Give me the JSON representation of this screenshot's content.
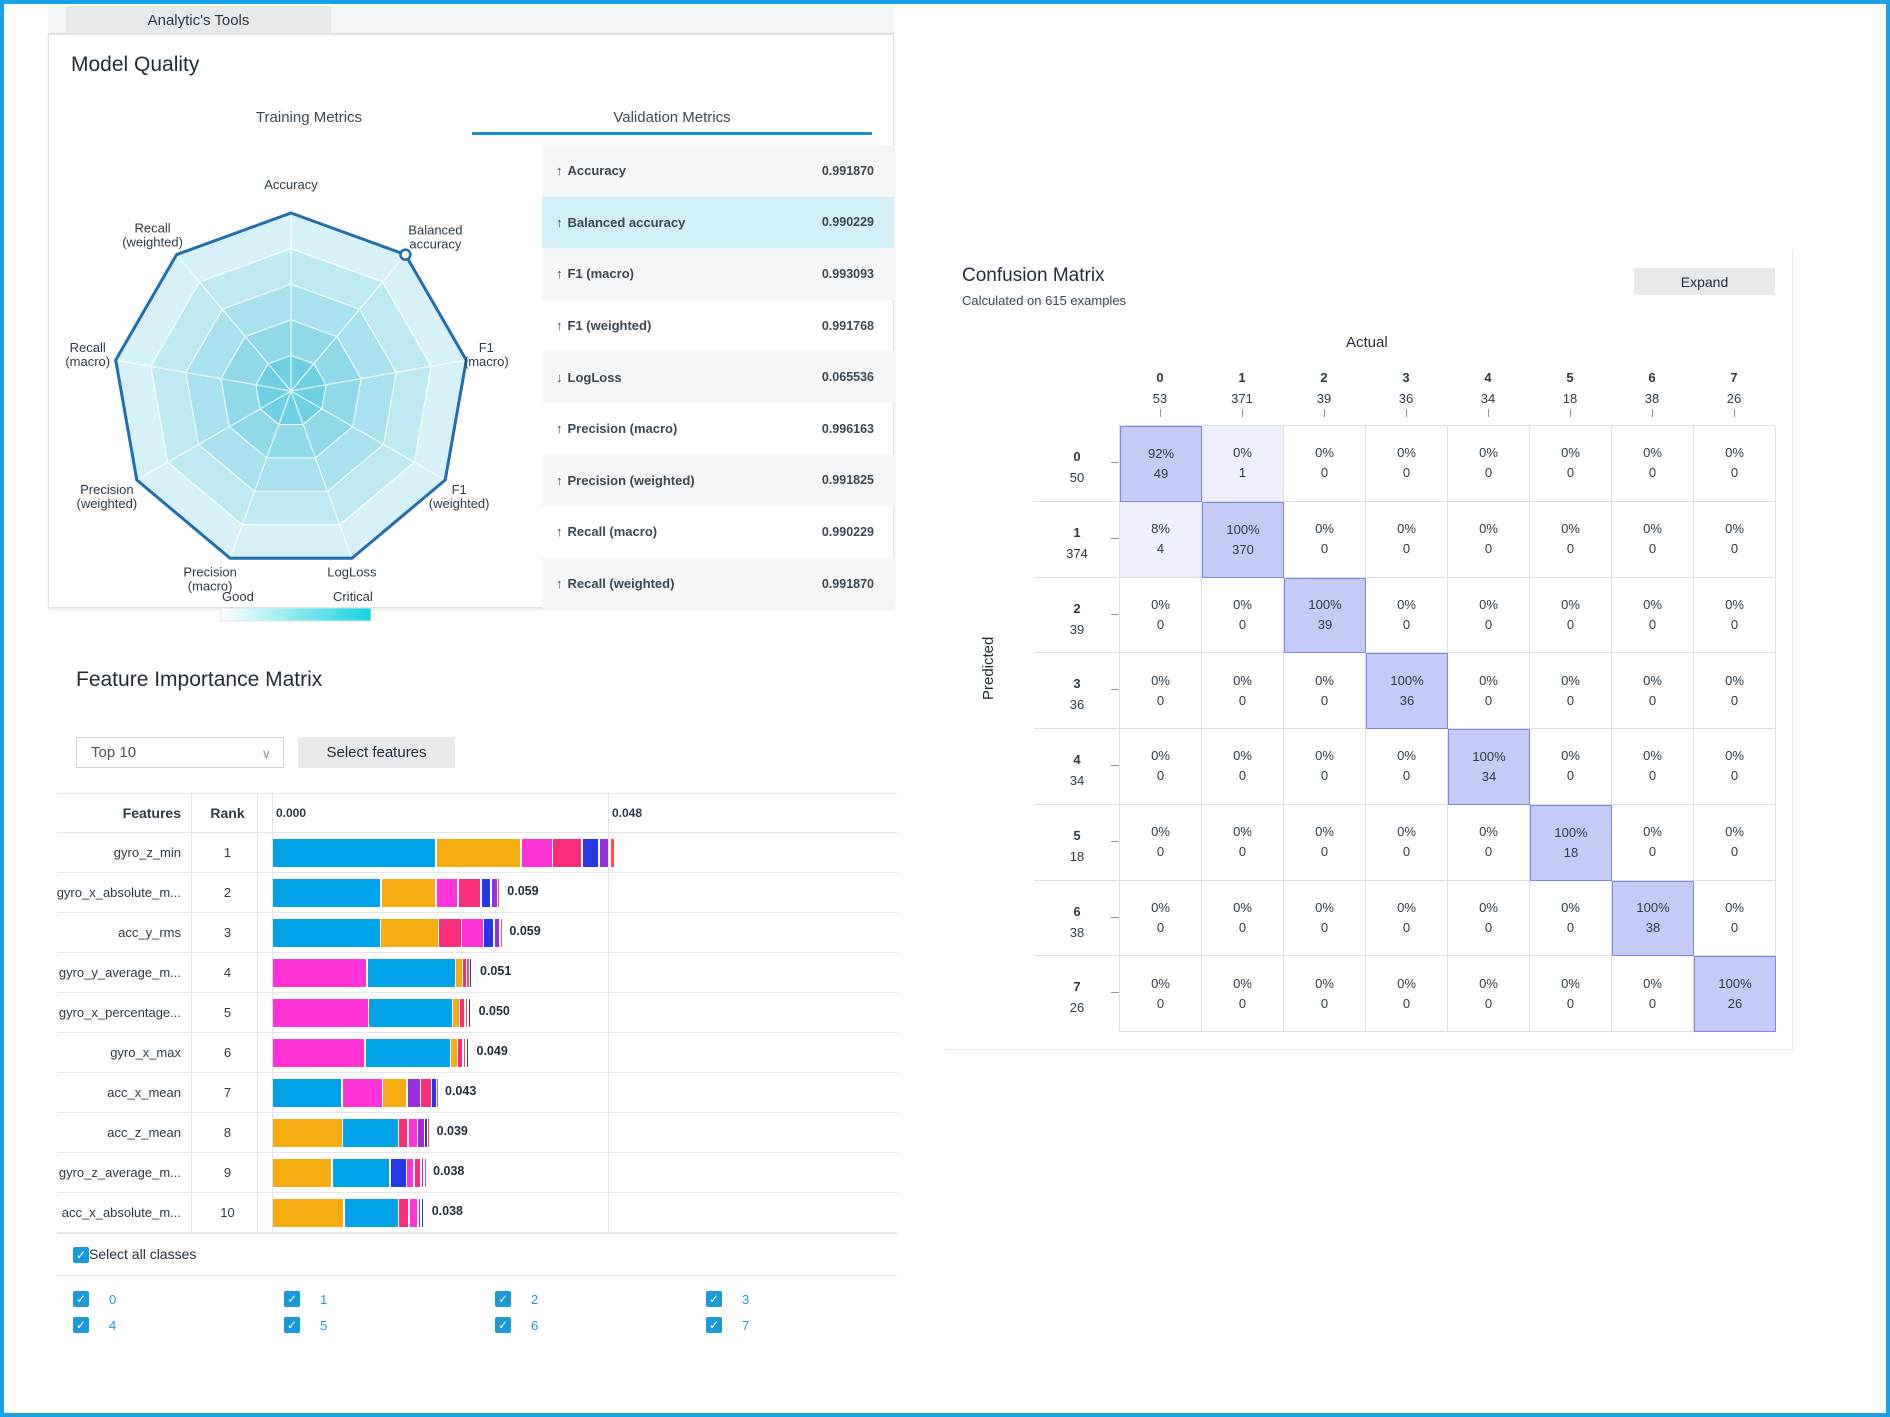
{
  "tools": {
    "tab_label": "Analytic's Tools"
  },
  "model_quality": {
    "title": "Model Quality",
    "tabs": [
      "Training Metrics",
      "Validation Metrics"
    ],
    "active_tab": "Validation Metrics",
    "radar_axes": [
      [
        "Accuracy"
      ],
      [
        "Balanced",
        "accuracy"
      ],
      [
        "F1",
        "(macro)"
      ],
      [
        "F1",
        "(weighted)"
      ],
      [
        "LogLoss"
      ],
      [
        "Precision",
        "(macro)"
      ],
      [
        "Precision",
        "(weighted)"
      ],
      [
        "Recall",
        "(macro)"
      ],
      [
        "Recall",
        "(weighted)"
      ]
    ],
    "radar_score": [
      1,
      1,
      1,
      1,
      1,
      1,
      1,
      1,
      1
    ],
    "highlighted_axis": "Balanced accuracy",
    "legend": {
      "good": "Good",
      "critical": "Critical"
    },
    "metrics": [
      {
        "direction": "up",
        "name": "Accuracy",
        "value": "0.991870"
      },
      {
        "direction": "up",
        "name": "Balanced accuracy",
        "value": "0.990229",
        "highlighted": true
      },
      {
        "direction": "up",
        "name": "F1 (macro)",
        "value": "0.993093"
      },
      {
        "direction": "up",
        "name": "F1 (weighted)",
        "value": "0.991768"
      },
      {
        "direction": "down",
        "name": "LogLoss",
        "value": "0.065536"
      },
      {
        "direction": "up",
        "name": "Precision (macro)",
        "value": "0.996163"
      },
      {
        "direction": "up",
        "name": "Precision (weighted)",
        "value": "0.991825"
      },
      {
        "direction": "up",
        "name": "Recall (macro)",
        "value": "0.990229"
      },
      {
        "direction": "up",
        "name": "Recall (weighted)",
        "value": "0.991870"
      }
    ]
  },
  "feature_importance": {
    "title": "Feature Importance Matrix",
    "top_select": "Top 10",
    "select_features_label": "Select features",
    "col_features": "Features",
    "col_rank": "Rank",
    "axis_ticks": [
      "0.000",
      "0.048"
    ],
    "class_colors": {
      "0": "#00a2e8",
      "1": "#f5ad12",
      "2": "#ff33d6",
      "3": "#fa2e7a",
      "4": "#2438e8",
      "5": "#9830e0",
      "6": "#ff5238",
      "7": "#b88ad8"
    },
    "rows": [
      {
        "feature": "gyro_z_min",
        "rank": "1",
        "total": "",
        "segments": [
          [
            "0",
            0.0235
          ],
          [
            "1",
            0.0122
          ],
          [
            "2",
            0.0045
          ],
          [
            "3",
            0.0042
          ],
          [
            "4",
            0.0024
          ],
          [
            "5",
            0.0016
          ],
          [
            "6",
            0.0007
          ]
        ]
      },
      {
        "feature": "gyro_x_absolute_m...",
        "rank": "2",
        "total": "0.059",
        "segments": [
          [
            "0",
            0.0157
          ],
          [
            "1",
            0.0078
          ],
          [
            "2",
            0.0032
          ],
          [
            "3",
            0.0033
          ],
          [
            "4",
            0.0014
          ],
          [
            "5",
            0.0009
          ],
          [
            "6",
            0.0004
          ],
          [
            "7",
            0.0002
          ]
        ]
      },
      {
        "feature": "acc_y_rms",
        "rank": "3",
        "total": "0.059",
        "segments": [
          [
            "0",
            0.0156
          ],
          [
            "1",
            0.0083
          ],
          [
            "3",
            0.0033
          ],
          [
            "2",
            0.0031
          ],
          [
            "4",
            0.0015
          ],
          [
            "5",
            0.0009
          ],
          [
            "6",
            0.0003
          ],
          [
            "7",
            0.0002
          ]
        ]
      },
      {
        "feature": "gyro_y_average_m...",
        "rank": "4",
        "total": "0.051",
        "segments": [
          [
            "2",
            0.0137
          ],
          [
            "0",
            0.0126
          ],
          [
            "1",
            0.001
          ],
          [
            "3",
            0.0006
          ],
          [
            "6",
            0.0004
          ],
          [
            "4",
            0.0003
          ],
          [
            "5",
            0.0002
          ],
          [
            "7",
            0.0002
          ]
        ]
      },
      {
        "feature": "gyro_x_percentage...",
        "rank": "5",
        "total": "0.050",
        "segments": [
          [
            "2",
            0.0139
          ],
          [
            "0",
            0.012
          ],
          [
            "1",
            0.001
          ],
          [
            "3",
            0.0008
          ],
          [
            "6",
            0.0004
          ],
          [
            "4",
            0.0003
          ],
          [
            "5",
            0.0002
          ],
          [
            "7",
            0.0002
          ]
        ]
      },
      {
        "feature": "gyro_x_max",
        "rank": "6",
        "total": "0.049",
        "segments": [
          [
            "2",
            0.0134
          ],
          [
            "0",
            0.0122
          ],
          [
            "1",
            0.001
          ],
          [
            "3",
            0.0008
          ],
          [
            "6",
            0.0004
          ],
          [
            "4",
            0.0003
          ],
          [
            "5",
            0.0002
          ],
          [
            "7",
            0.0002
          ]
        ]
      },
      {
        "feature": "acc_x_mean",
        "rank": "7",
        "total": "0.043",
        "segments": [
          [
            "0",
            0.0101
          ],
          [
            "2",
            0.0058
          ],
          [
            "1",
            0.0035
          ],
          [
            "5",
            0.0019
          ],
          [
            "3",
            0.0016
          ],
          [
            "4",
            0.0007
          ],
          [
            "6",
            0.0004
          ]
        ]
      },
      {
        "feature": "acc_z_mean",
        "rank": "8",
        "total": "0.039",
        "segments": [
          [
            "1",
            0.0102
          ],
          [
            "0",
            0.008
          ],
          [
            "3",
            0.0013
          ],
          [
            "2",
            0.0014
          ],
          [
            "5",
            0.001
          ],
          [
            "4",
            0.0004
          ],
          [
            "6",
            0.0003
          ],
          [
            "7",
            0.0002
          ]
        ]
      },
      {
        "feature": "gyro_z_average_m...",
        "rank": "9",
        "total": "0.038",
        "segments": [
          [
            "1",
            0.0087
          ],
          [
            "0",
            0.0083
          ],
          [
            "4",
            0.0023
          ],
          [
            "2",
            0.0011
          ],
          [
            "3",
            0.001
          ],
          [
            "5",
            0.0004
          ],
          [
            "6",
            0.0003
          ],
          [
            "7",
            0.0002
          ]
        ]
      },
      {
        "feature": "acc_x_absolute_m...",
        "rank": "10",
        "total": "0.038",
        "segments": [
          [
            "1",
            0.0104
          ],
          [
            "0",
            0.0078
          ],
          [
            "3",
            0.0015
          ],
          [
            "2",
            0.0013
          ],
          [
            "5",
            0.0004
          ],
          [
            "4",
            0.0003
          ],
          [
            "6",
            0.0002
          ],
          [
            "7",
            0.0002
          ]
        ]
      }
    ],
    "select_all_label": "Select all classes",
    "classes": [
      "0",
      "1",
      "2",
      "3",
      "4",
      "5",
      "6",
      "7"
    ]
  },
  "confusion_matrix": {
    "title": "Confusion Matrix",
    "subtitle": "Calculated on 615 examples",
    "expand_label": "Expand",
    "actual_label": "Actual",
    "predicted_label": "Predicted",
    "classes": [
      "0",
      "1",
      "2",
      "3",
      "4",
      "5",
      "6",
      "7"
    ],
    "actual_counts": [
      "53",
      "371",
      "39",
      "36",
      "34",
      "18",
      "38",
      "26"
    ],
    "predicted_counts": [
      "50",
      "374",
      "39",
      "36",
      "34",
      "18",
      "38",
      "26"
    ],
    "cells": [
      [
        [
          "92%",
          "49"
        ],
        [
          "0%",
          "1"
        ],
        [
          "0%",
          "0"
        ],
        [
          "0%",
          "0"
        ],
        [
          "0%",
          "0"
        ],
        [
          "0%",
          "0"
        ],
        [
          "0%",
          "0"
        ],
        [
          "0%",
          "0"
        ]
      ],
      [
        [
          "8%",
          "4"
        ],
        [
          "100%",
          "370"
        ],
        [
          "0%",
          "0"
        ],
        [
          "0%",
          "0"
        ],
        [
          "0%",
          "0"
        ],
        [
          "0%",
          "0"
        ],
        [
          "0%",
          "0"
        ],
        [
          "0%",
          "0"
        ]
      ],
      [
        [
          "0%",
          "0"
        ],
        [
          "0%",
          "0"
        ],
        [
          "100%",
          "39"
        ],
        [
          "0%",
          "0"
        ],
        [
          "0%",
          "0"
        ],
        [
          "0%",
          "0"
        ],
        [
          "0%",
          "0"
        ],
        [
          "0%",
          "0"
        ]
      ],
      [
        [
          "0%",
          "0"
        ],
        [
          "0%",
          "0"
        ],
        [
          "0%",
          "0"
        ],
        [
          "100%",
          "36"
        ],
        [
          "0%",
          "0"
        ],
        [
          "0%",
          "0"
        ],
        [
          "0%",
          "0"
        ],
        [
          "0%",
          "0"
        ]
      ],
      [
        [
          "0%",
          "0"
        ],
        [
          "0%",
          "0"
        ],
        [
          "0%",
          "0"
        ],
        [
          "0%",
          "0"
        ],
        [
          "100%",
          "34"
        ],
        [
          "0%",
          "0"
        ],
        [
          "0%",
          "0"
        ],
        [
          "0%",
          "0"
        ]
      ],
      [
        [
          "0%",
          "0"
        ],
        [
          "0%",
          "0"
        ],
        [
          "0%",
          "0"
        ],
        [
          "0%",
          "0"
        ],
        [
          "0%",
          "0"
        ],
        [
          "100%",
          "18"
        ],
        [
          "0%",
          "0"
        ],
        [
          "0%",
          "0"
        ]
      ],
      [
        [
          "0%",
          "0"
        ],
        [
          "0%",
          "0"
        ],
        [
          "0%",
          "0"
        ],
        [
          "0%",
          "0"
        ],
        [
          "0%",
          "0"
        ],
        [
          "0%",
          "0"
        ],
        [
          "100%",
          "38"
        ],
        [
          "0%",
          "0"
        ]
      ],
      [
        [
          "0%",
          "0"
        ],
        [
          "0%",
          "0"
        ],
        [
          "0%",
          "0"
        ],
        [
          "0%",
          "0"
        ],
        [
          "0%",
          "0"
        ],
        [
          "0%",
          "0"
        ],
        [
          "0%",
          "0"
        ],
        [
          "100%",
          "26"
        ]
      ]
    ]
  }
}
